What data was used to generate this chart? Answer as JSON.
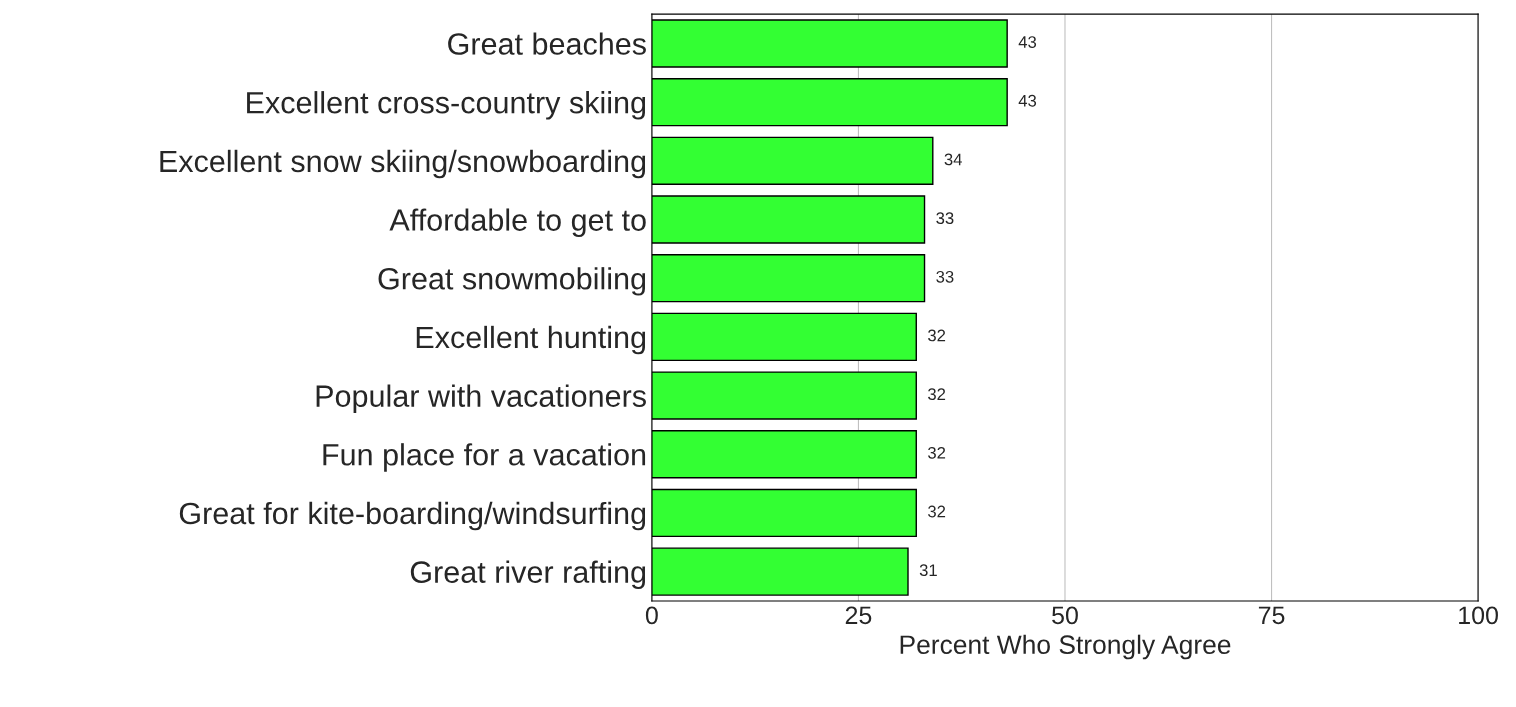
{
  "chart_data": {
    "type": "bar",
    "orientation": "horizontal",
    "categories": [
      "Great beaches",
      "Excellent cross-country skiing",
      "Excellent snow skiing/snowboarding",
      "Affordable to get to",
      "Great snowmobiling",
      "Excellent hunting",
      "Popular with vacationers",
      "Fun place for a vacation",
      "Great for kite-boarding/windsurfing",
      "Great river rafting"
    ],
    "values": [
      43,
      43,
      34,
      33,
      33,
      32,
      32,
      32,
      32,
      31
    ],
    "color": "#33ff33",
    "xlabel": "Percent Who Strongly Agree",
    "xlim": [
      0,
      100
    ],
    "xticks": [
      0,
      25,
      50,
      75,
      100
    ],
    "grid": "x",
    "data_labels": true
  }
}
